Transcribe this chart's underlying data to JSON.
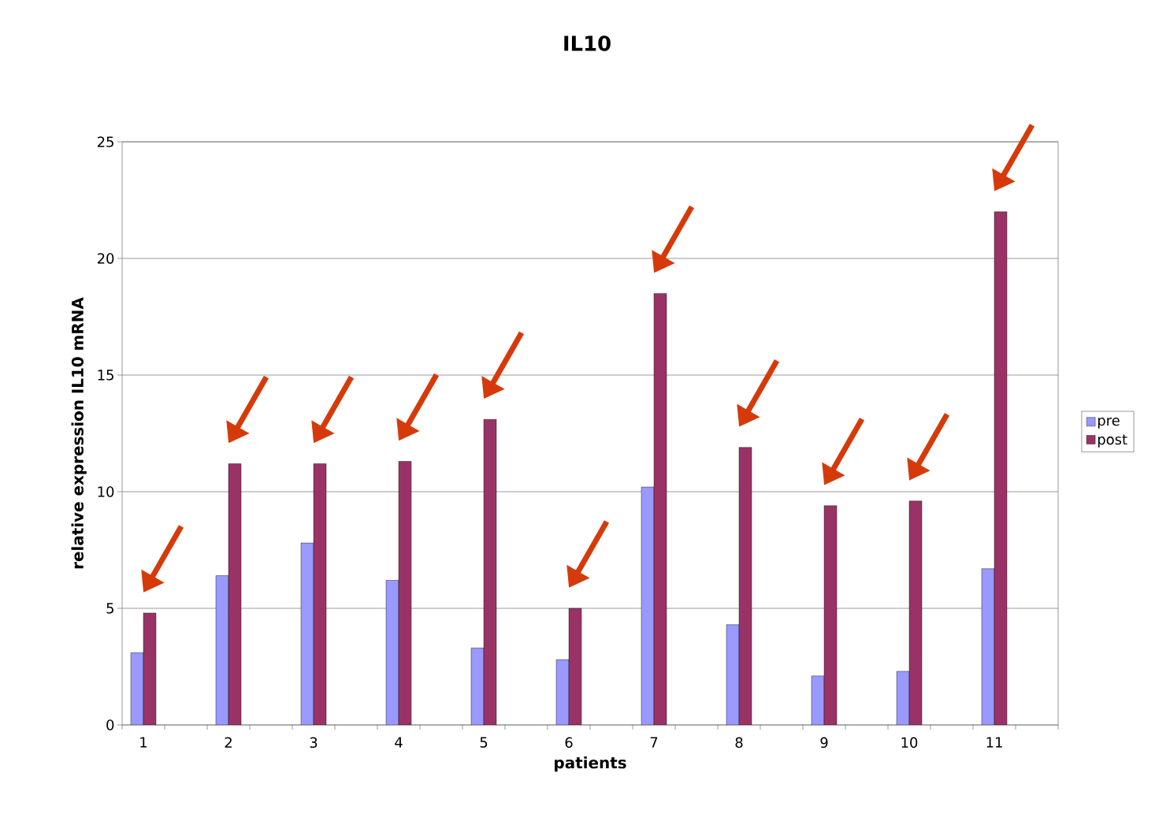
{
  "chart_data": {
    "type": "bar",
    "title": "IL10",
    "xlabel": "patients",
    "ylabel": "relative expression IL10 mRNA",
    "categories": [
      "1",
      null,
      "2",
      null,
      "3",
      null,
      "4",
      null,
      "5",
      null,
      "6",
      null,
      "7",
      null,
      "8",
      null,
      "9",
      null,
      "10",
      null,
      "11",
      null
    ],
    "series": [
      {
        "name": "pre",
        "color": "#9999ff",
        "values": [
          3.1,
          null,
          6.4,
          null,
          7.8,
          null,
          6.2,
          null,
          3.3,
          null,
          2.8,
          null,
          10.2,
          null,
          4.3,
          null,
          2.1,
          null,
          2.3,
          null,
          6.7,
          null
        ]
      },
      {
        "name": "post",
        "color": "#993366",
        "values": [
          4.8,
          null,
          11.2,
          null,
          11.2,
          null,
          11.3,
          null,
          13.1,
          null,
          5.0,
          null,
          18.5,
          null,
          11.9,
          null,
          9.4,
          null,
          9.6,
          null,
          22.0,
          null
        ]
      }
    ],
    "ylim": [
      0,
      25
    ],
    "yticks": [
      0,
      5,
      10,
      15,
      20,
      25
    ],
    "grid": "y",
    "legend": "right"
  }
}
